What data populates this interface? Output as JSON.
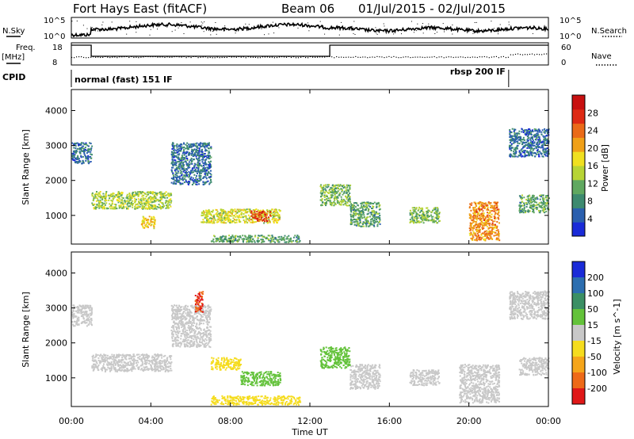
{
  "header": {
    "station": "Fort Hays East (fitACF)",
    "beam": "Beam 06",
    "dates": "01/Jul/2015 - 02/Jul/2015"
  },
  "summary": {
    "nsky_label": "N.Sky",
    "nsky_ticks": [
      "10^5",
      "10^0"
    ],
    "nsearch_label": "N.Search",
    "nsearch_ticks": [
      "10^5",
      "10^0"
    ],
    "freq_label": [
      "Freq.",
      "[MHz]"
    ],
    "freq_ticks": [
      18,
      8
    ],
    "nave_label": "Nave",
    "nave_ticks": [
      60,
      0
    ],
    "cpid_label": "CPID",
    "freq_steps": [
      {
        "start": 0.0,
        "end": 1.0,
        "mhz": 18
      },
      {
        "start": 1.0,
        "end": 13.0,
        "mhz": 8
      },
      {
        "start": 13.0,
        "end": 24.0,
        "mhz": 18
      }
    ],
    "cpid_modes": [
      {
        "start": 0.0,
        "end": 22.0,
        "label": "normal (fast) 151 IF",
        "align": "start"
      },
      {
        "start": 22.0,
        "end": 24.0,
        "label": "rbsp 200 IF",
        "align": "end"
      }
    ]
  },
  "chart_data": [
    {
      "type": "heatmap",
      "panel": "power",
      "ylabel": "Slant Range [km]",
      "x_range_hours": [
        0,
        24
      ],
      "ylim": [
        180,
        4600
      ],
      "yticks": [
        1000,
        2000,
        3000,
        4000
      ],
      "colorbar": {
        "label": "Power [dB]",
        "range": [
          0,
          32
        ],
        "ticks": [
          "4",
          "8",
          "12",
          "16",
          "20",
          "24",
          "28"
        ],
        "colors": [
          "#1a2bd8",
          "#2a5fae",
          "#3d8a6f",
          "#60a860",
          "#b7d435",
          "#f0e020",
          "#f0a018",
          "#ea6a18",
          "#de2a14",
          "#c81010"
        ]
      },
      "echo_regions": [
        {
          "x": [
            0.0,
            1.0
          ],
          "range_km": [
            2500,
            3100
          ],
          "power_db": 6
        },
        {
          "x": [
            1.0,
            5.0
          ],
          "range_km": [
            1200,
            1700
          ],
          "power_db": 14
        },
        {
          "x": [
            3.5,
            4.2
          ],
          "range_km": [
            650,
            1000
          ],
          "power_db": 18
        },
        {
          "x": [
            5.0,
            7.0
          ],
          "range_km": [
            1900,
            3100
          ],
          "power_db": 6
        },
        {
          "x": [
            6.5,
            10.5
          ],
          "range_km": [
            800,
            1200
          ],
          "power_db": 16
        },
        {
          "x": [
            9.0,
            10.0
          ],
          "range_km": [
            850,
            1150
          ],
          "power_db": 26
        },
        {
          "x": [
            7.0,
            11.5
          ],
          "range_km": [
            250,
            450
          ],
          "power_db": 10
        },
        {
          "x": [
            12.5,
            14.0
          ],
          "range_km": [
            1300,
            1900
          ],
          "power_db": 12
        },
        {
          "x": [
            14.0,
            15.5
          ],
          "range_km": [
            700,
            1400
          ],
          "power_db": 10
        },
        {
          "x": [
            17.0,
            18.5
          ],
          "range_km": [
            800,
            1250
          ],
          "power_db": 12
        },
        {
          "x": [
            20.0,
            21.5
          ],
          "range_km": [
            300,
            1400
          ],
          "power_db": 22
        },
        {
          "x": [
            22.0,
            24.0
          ],
          "range_km": [
            2700,
            3500
          ],
          "power_db": 6
        },
        {
          "x": [
            22.5,
            24.0
          ],
          "range_km": [
            1100,
            1600
          ],
          "power_db": 10
        }
      ]
    },
    {
      "type": "heatmap",
      "panel": "velocity",
      "ylabel": "Slant Range [km]",
      "xlabel": "Time UT",
      "xticks": [
        "00:00",
        "04:00",
        "08:00",
        "12:00",
        "16:00",
        "20:00",
        "00:00"
      ],
      "x_range_hours": [
        0,
        24
      ],
      "ylim": [
        180,
        4600
      ],
      "yticks": [
        1000,
        2000,
        3000,
        4000
      ],
      "colorbar": {
        "label": "Velocity [m s^-1]",
        "ticks": [
          "200",
          "100",
          "50",
          "15",
          "-15",
          "-50",
          "-100",
          "-200"
        ],
        "colors": [
          "#1a2bd8",
          "#2c6eb0",
          "#3b8f64",
          "#63c23a",
          "#c8c8c8",
          "#f5dc1e",
          "#f5a51a",
          "#ee6a18",
          "#e01818"
        ]
      },
      "echo_regions": [
        {
          "x": [
            0.0,
            1.0
          ],
          "range_km": [
            2500,
            3100
          ],
          "velocity": 0
        },
        {
          "x": [
            1.0,
            5.0
          ],
          "range_km": [
            1200,
            1700
          ],
          "velocity": -5
        },
        {
          "x": [
            5.0,
            7.0
          ],
          "range_km": [
            1900,
            3100
          ],
          "velocity": 0
        },
        {
          "x": [
            6.2,
            6.6
          ],
          "range_km": [
            2900,
            3500
          ],
          "velocity": -200
        },
        {
          "x": [
            7.0,
            8.5
          ],
          "range_km": [
            1250,
            1600
          ],
          "velocity": -30
        },
        {
          "x": [
            8.5,
            10.5
          ],
          "range_km": [
            800,
            1200
          ],
          "velocity": 40
        },
        {
          "x": [
            7.0,
            11.5
          ],
          "range_km": [
            250,
            500
          ],
          "velocity": -40
        },
        {
          "x": [
            12.5,
            14.0
          ],
          "range_km": [
            1300,
            1900
          ],
          "velocity": 30
        },
        {
          "x": [
            14.0,
            15.5
          ],
          "range_km": [
            700,
            1400
          ],
          "velocity": 0
        },
        {
          "x": [
            17.0,
            18.5
          ],
          "range_km": [
            800,
            1250
          ],
          "velocity": 0
        },
        {
          "x": [
            19.5,
            21.5
          ],
          "range_km": [
            300,
            1400
          ],
          "velocity": 0
        },
        {
          "x": [
            22.0,
            24.0
          ],
          "range_km": [
            2700,
            3500
          ],
          "velocity": 0
        },
        {
          "x": [
            22.5,
            24.0
          ],
          "range_km": [
            1100,
            1600
          ],
          "velocity": 0
        }
      ]
    }
  ]
}
